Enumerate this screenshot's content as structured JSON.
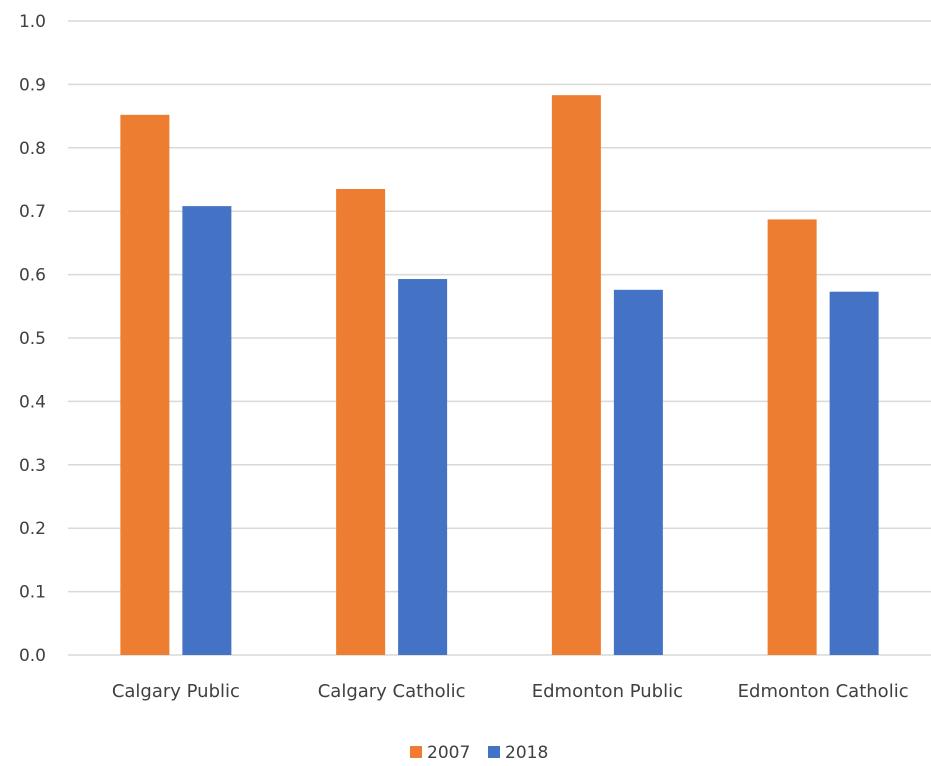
{
  "chart_data": {
    "type": "bar",
    "title": "",
    "xlabel": "",
    "ylabel": "",
    "categories": [
      "Calgary Public",
      "Calgary Catholic",
      "Edmonton Public",
      "Edmonton Catholic"
    ],
    "series": [
      {
        "name": "2007",
        "color": "#ED7D31",
        "values": [
          0.852,
          0.735,
          0.883,
          0.687
        ]
      },
      {
        "name": "2018",
        "color": "#4472C4",
        "values": [
          0.708,
          0.593,
          0.576,
          0.573
        ]
      }
    ],
    "ylim": [
      0,
      1.0
    ],
    "yticks": [
      "0.0",
      "0.1",
      "0.2",
      "0.3",
      "0.4",
      "0.5",
      "0.6",
      "0.7",
      "0.8",
      "0.9",
      "1.0"
    ],
    "grid": true,
    "legend_position": "bottom"
  }
}
